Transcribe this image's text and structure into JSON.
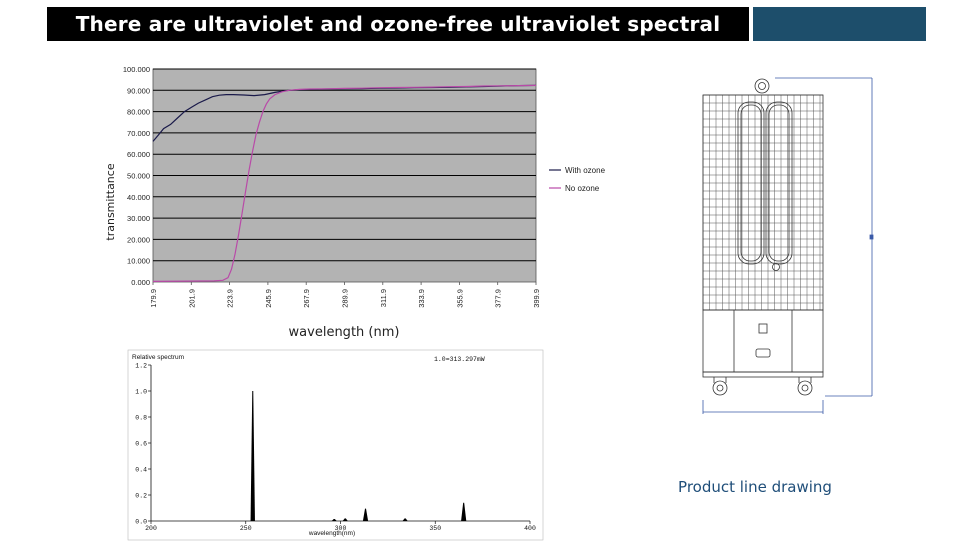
{
  "title": "There are ultraviolet and ozone-free ultraviolet spectral curves",
  "caption": "Product line drawing",
  "colors": {
    "accent": "#1d4e6b",
    "caption": "#1f4e79",
    "with_ozone": "#1a1a4a",
    "no_ozone": "#b94aa8",
    "plot_bg": "#b3b3b3"
  },
  "chart_data": [
    {
      "type": "line",
      "xlabel": "wavelength (nm)",
      "ylabel": "transmittance",
      "x_ticks": [
        "179.9",
        "201.9",
        "223.9",
        "245.9",
        "267.9",
        "289.9",
        "311.9",
        "333.9",
        "355.9",
        "377.9",
        "399.9"
      ],
      "y_ticks": [
        "0.000",
        "10.000",
        "20.000",
        "30.000",
        "40.000",
        "50.000",
        "60.000",
        "70.000",
        "80.000",
        "90.000",
        "100.000"
      ],
      "xlim": [
        179.9,
        399.9
      ],
      "ylim": [
        0,
        100
      ],
      "grid": true,
      "legend_position": "right",
      "series": [
        {
          "name": "With ozone",
          "color": "#1a1a4a",
          "points": [
            [
              179.9,
              66
            ],
            [
              183,
              69
            ],
            [
              186,
              72
            ],
            [
              190,
              74
            ],
            [
              194,
              77
            ],
            [
              198,
              80
            ],
            [
              202,
              82
            ],
            [
              206,
              84
            ],
            [
              210,
              85.5
            ],
            [
              214,
              87
            ],
            [
              218,
              87.7
            ],
            [
              222,
              88
            ],
            [
              226,
              88
            ],
            [
              232,
              87.8
            ],
            [
              238,
              87.5
            ],
            [
              244,
              88
            ],
            [
              250,
              89
            ],
            [
              256,
              89.8
            ],
            [
              262,
              90.2
            ],
            [
              270,
              90.4
            ],
            [
              280,
              90.6
            ],
            [
              290,
              90.7
            ],
            [
              300,
              90.8
            ],
            [
              310,
              91
            ],
            [
              320,
              91.1
            ],
            [
              330,
              91.2
            ],
            [
              340,
              91.3
            ],
            [
              350,
              91.4
            ],
            [
              360,
              91.6
            ],
            [
              370,
              91.8
            ],
            [
              380,
              92
            ],
            [
              390,
              92.2
            ],
            [
              399.9,
              92.3
            ]
          ]
        },
        {
          "name": "No ozone",
          "color": "#b94aa8",
          "points": [
            [
              179.9,
              0.3
            ],
            [
              200,
              0.4
            ],
            [
              215,
              0.5
            ],
            [
              220,
              0.8
            ],
            [
              223,
              2
            ],
            [
              225,
              6
            ],
            [
              227,
              13
            ],
            [
              229,
              22
            ],
            [
              231,
              32
            ],
            [
              233,
              42
            ],
            [
              235,
              52
            ],
            [
              237,
              61
            ],
            [
              239,
              69
            ],
            [
              241,
              75
            ],
            [
              243,
              80
            ],
            [
              245,
              83.5
            ],
            [
              247,
              86
            ],
            [
              250,
              88
            ],
            [
              254,
              89.3
            ],
            [
              258,
              90
            ],
            [
              264,
              90.4
            ],
            [
              270,
              90.6
            ],
            [
              280,
              90.7
            ],
            [
              290,
              90.9
            ],
            [
              300,
              91
            ],
            [
              310,
              91.2
            ],
            [
              320,
              91.3
            ],
            [
              330,
              91.4
            ],
            [
              340,
              91.5
            ],
            [
              350,
              91.7
            ],
            [
              360,
              91.8
            ],
            [
              370,
              92
            ],
            [
              380,
              92.1
            ],
            [
              390,
              92.2
            ],
            [
              399.9,
              92.3
            ]
          ]
        }
      ]
    },
    {
      "type": "line",
      "title": "Relative spectrum",
      "annotation": "1.0=313.297mW",
      "xlabel": "wavelength(nm)",
      "x_ticks": [
        "200",
        "250",
        "300",
        "350",
        "400"
      ],
      "y_ticks": [
        "0.0",
        "0.2",
        "0.4",
        "0.6",
        "0.8",
        "1.0",
        "1.2"
      ],
      "xlim": [
        200,
        400
      ],
      "ylim": [
        0,
        1.2
      ],
      "grid": false,
      "series": [
        {
          "peaks": [
            {
              "x": 253.7,
              "y": 1.0
            },
            {
              "x": 296.7,
              "y": 0.015
            },
            {
              "x": 302.5,
              "y": 0.02
            },
            {
              "x": 313.2,
              "y": 0.095
            },
            {
              "x": 334.1,
              "y": 0.02
            },
            {
              "x": 365.0,
              "y": 0.14
            }
          ]
        }
      ]
    }
  ]
}
